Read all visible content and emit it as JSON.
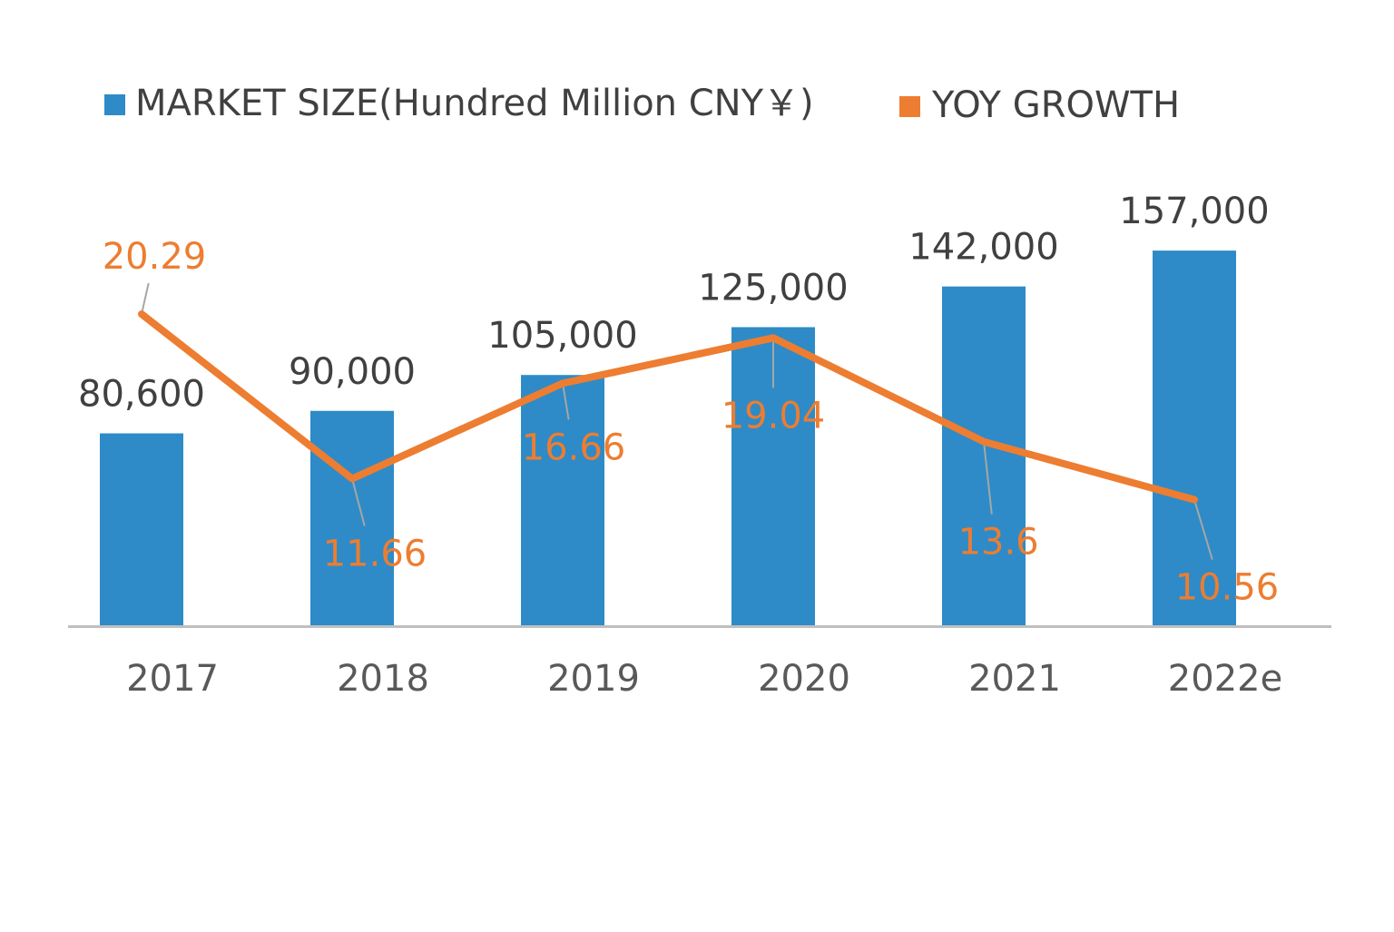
{
  "chart_data": {
    "type": "bar",
    "title": "",
    "xlabel": "",
    "ylabel": "",
    "categories": [
      "2017",
      "2018",
      "2019",
      "2020",
      "2021",
      "2022e"
    ],
    "series": [
      {
        "name": "MARKET SIZE(Hundred Million CNY￥)",
        "type": "bar",
        "axis": "primary",
        "color": "#2E8BC7",
        "values": [
          80600,
          90000,
          105000,
          125000,
          142000,
          157000
        ],
        "labels": [
          "80,600",
          "90,000",
          "105,000",
          "125,000",
          "142,000",
          "157,000"
        ]
      },
      {
        "name": "YOY GROWTH",
        "type": "line",
        "axis": "secondary",
        "color": "#ED7D31",
        "values": [
          20.29,
          11.66,
          16.66,
          19.04,
          13.6,
          10.56
        ],
        "labels": [
          "20.29",
          "11.66",
          "16.66",
          "19.04",
          "13.6",
          "10.56"
        ]
      }
    ],
    "ylim": [
      0,
      180000
    ],
    "y2lim": [
      3.93,
      26.5
    ],
    "grid": false,
    "axes_visible": false,
    "legend": "top",
    "colors": {
      "text": "#404040",
      "axis": "#BFBFBF",
      "leader": "#A6A6A6"
    }
  }
}
